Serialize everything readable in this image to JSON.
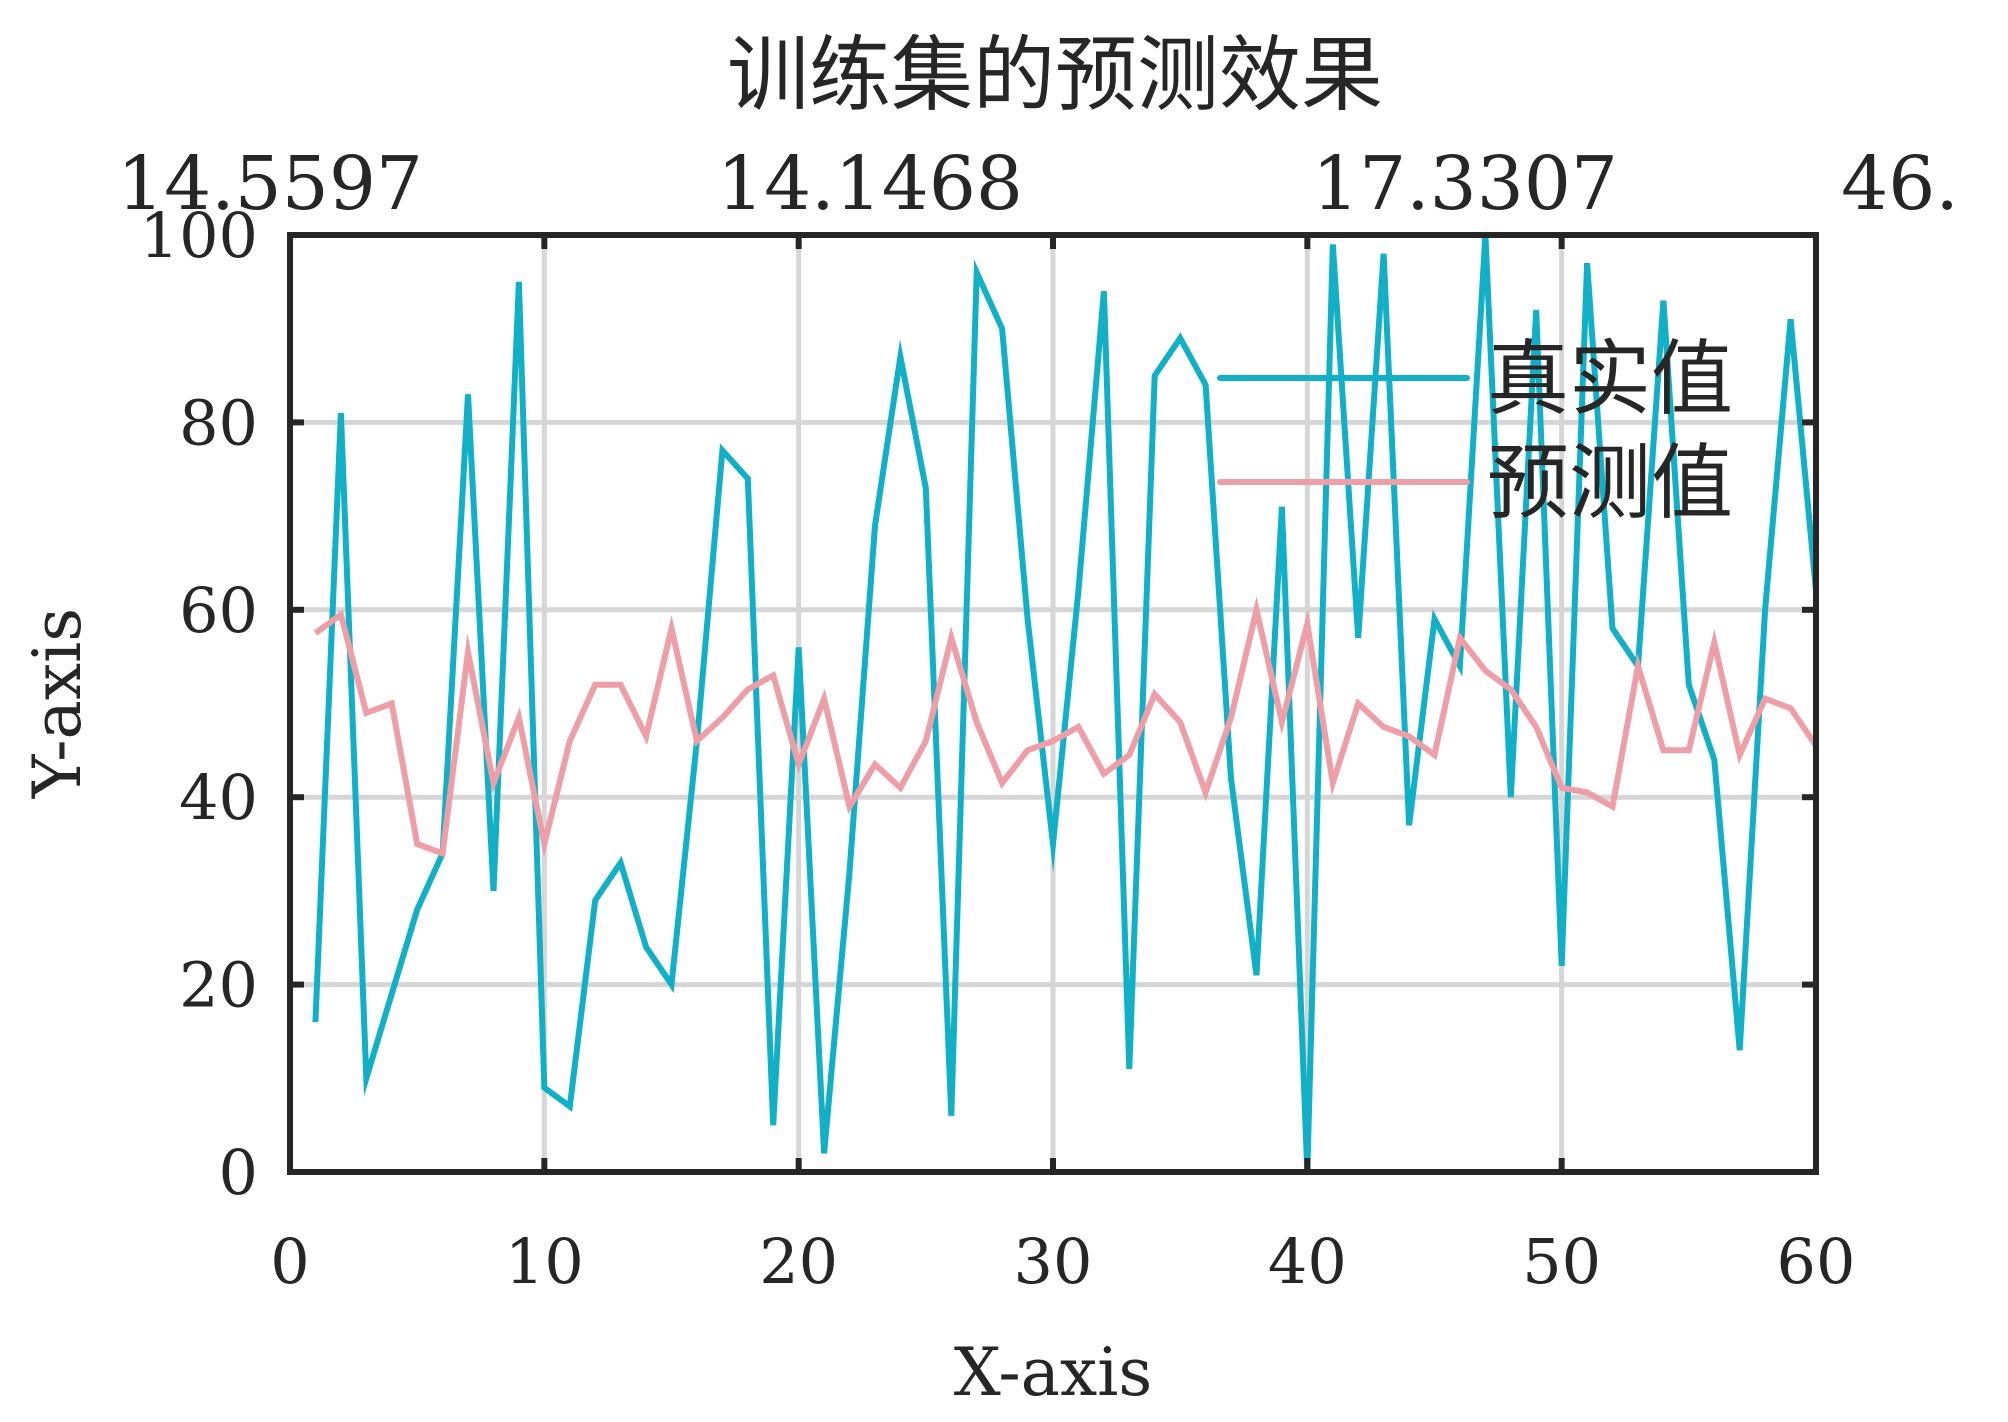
{
  "chart_data": {
    "type": "line",
    "title": "训练集的预测效果",
    "xlabel": "X-axis",
    "ylabel": "Y-axis",
    "xlim": [
      0,
      60
    ],
    "ylim": [
      0,
      100
    ],
    "x_ticks": [
      "0",
      "10",
      "20",
      "30",
      "40",
      "50",
      "60"
    ],
    "y_ticks": [
      "0",
      "20",
      "40",
      "60",
      "80",
      "100"
    ],
    "top_tick_labels": [
      "14.5597",
      "14.1468",
      "17.3307",
      "46."
    ],
    "grid": true,
    "legend_position": "top-right",
    "x": [
      1,
      2,
      3,
      4,
      5,
      6,
      7,
      8,
      9,
      10,
      11,
      12,
      13,
      14,
      15,
      16,
      17,
      18,
      19,
      20,
      21,
      22,
      23,
      24,
      25,
      26,
      27,
      28,
      29,
      30,
      31,
      32,
      33,
      34,
      35,
      36,
      37,
      38,
      39,
      40,
      41,
      42,
      43,
      44,
      45,
      46,
      47,
      48,
      49,
      50,
      51,
      52,
      53,
      54,
      55,
      56,
      57,
      58,
      59,
      60
    ],
    "series": [
      {
        "name": "真实值",
        "color": "#12b0c6",
        "values": [
          16,
          81,
          10,
          19,
          28,
          34,
          83,
          30,
          95,
          9,
          7,
          29,
          33,
          24,
          20,
          46,
          77,
          74,
          5,
          56,
          2,
          32,
          69,
          87,
          73,
          6,
          96,
          90,
          59,
          35,
          62,
          94,
          11,
          85,
          89,
          84,
          42,
          21,
          71,
          0,
          99,
          57,
          98,
          37,
          59,
          54,
          100,
          40,
          92,
          22,
          97,
          58,
          54,
          93,
          52,
          44,
          13,
          60,
          91,
          62
        ]
      },
      {
        "name": "预测值",
        "color": "#ee9ea6",
        "values": [
          57.5,
          59.5,
          49,
          50,
          35,
          34,
          55.5,
          41.5,
          48.5,
          35,
          46,
          52,
          52,
          46.5,
          58,
          46,
          48.5,
          51.5,
          53,
          43.5,
          50.5,
          39,
          43.5,
          41,
          46,
          57,
          48,
          41.5,
          45,
          46,
          47.5,
          42.5,
          44.5,
          51,
          48,
          40.5,
          48.5,
          60,
          48,
          58.5,
          41.5,
          50,
          47.5,
          46.5,
          44.5,
          57,
          53.5,
          51.5,
          47.5,
          41,
          40.5,
          39,
          54,
          45,
          45,
          56.5,
          44.5,
          50.5,
          49.5,
          45.5
        ]
      }
    ]
  }
}
